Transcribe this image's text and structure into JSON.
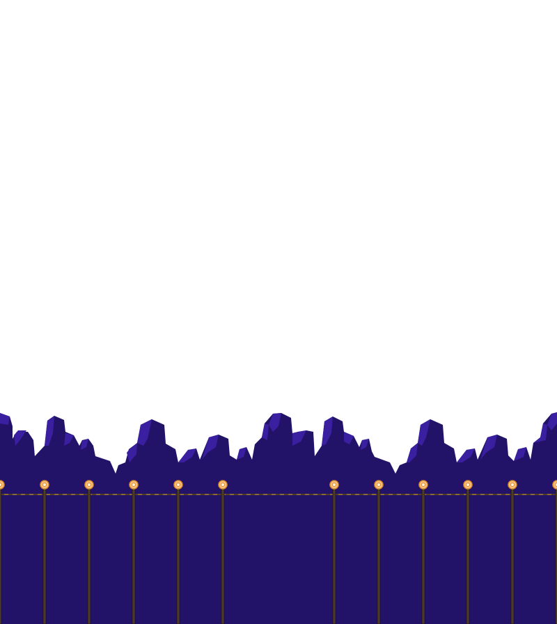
{
  "scene": {
    "type": "pixel-art background",
    "sky_color": "#ffffff",
    "mountain_color": "#231368",
    "mountain_highlight_color": "#3a1fa0",
    "ground_color": "#231368",
    "rope_color": "#8a6a3a",
    "post_color": "#4d3a2f",
    "lamp_fill_color": "#f9c07c",
    "lamp_ring_color": "#e28a30",
    "lamp_core_color": "#fff3dc",
    "fence": {
      "post_count": 12,
      "posts_missing_between": [
        "post-6",
        "post-8"
      ]
    }
  }
}
